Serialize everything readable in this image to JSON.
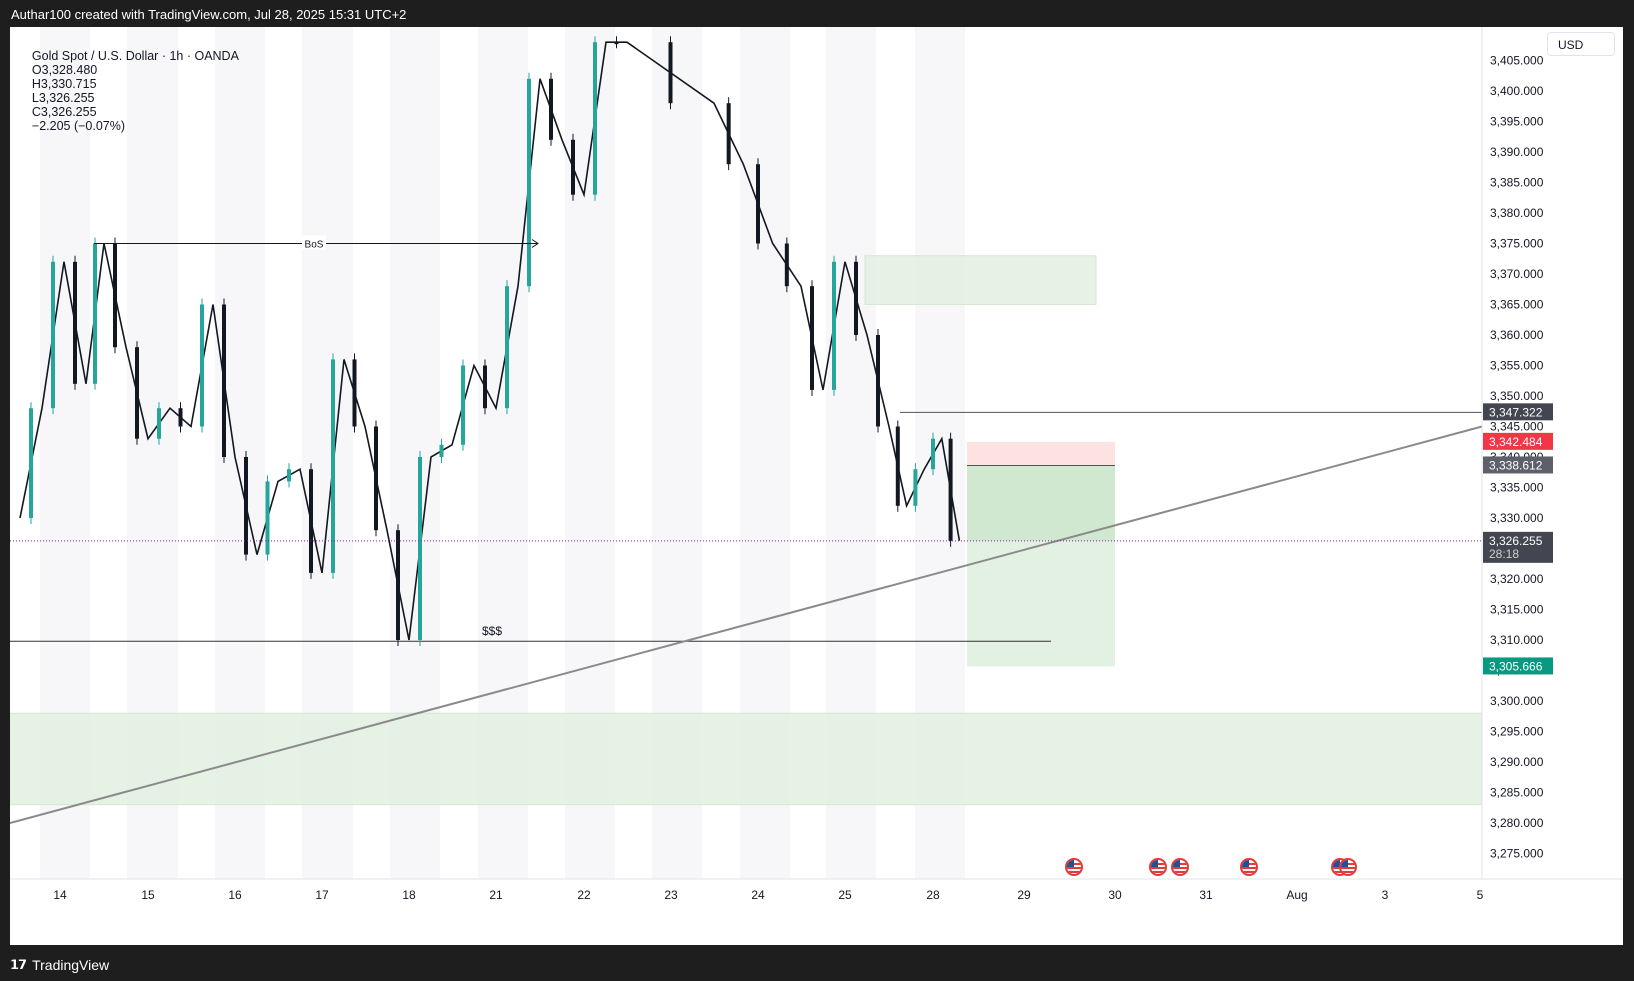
{
  "caption": "Authar100 created with TradingView.com, Jul 28, 2025 15:31 UTC+2",
  "header": {
    "symbol": "Gold Spot / U.S. Dollar · 1h · OANDA",
    "open": "O3,328.480",
    "high": "H3,330.715",
    "low": "L3,326.255",
    "close": "C3,326.255",
    "change": "−2.205 (−0.07%)"
  },
  "currency": "USD",
  "footer": {
    "brand": "TradingView",
    "logo_icon": "tradingview-logo-icon"
  },
  "colors": {
    "up": "#26a69a",
    "down": "#131722",
    "price_line": "#7b1fa2",
    "stop_label": "#f23645",
    "target_label": "#089981",
    "current_label": "#434651"
  },
  "chart_data": {
    "type": "candlestick",
    "symbol": "XAUUSD",
    "timeframe": "1h",
    "x_ticks": [
      "14",
      "15",
      "16",
      "17",
      "18",
      "21",
      "22",
      "23",
      "24",
      "25",
      "28",
      "29",
      "30",
      "31",
      "Aug",
      "3",
      "5"
    ],
    "ylim": [
      3270,
      3408
    ],
    "y_ticks": [
      "3,405.000",
      "3,400.000",
      "3,395.000",
      "3,390.000",
      "3,385.000",
      "3,380.000",
      "3,375.000",
      "3,370.000",
      "3,365.000",
      "3,360.000",
      "3,355.000",
      "3,350.000",
      "3,345.000",
      "3,340.000",
      "3,335.000",
      "3,330.000",
      "3,325.000",
      "3,320.000",
      "3,315.000",
      "3,310.000",
      "3,305.000",
      "3,300.000",
      "3,295.000",
      "3,290.000",
      "3,285.000",
      "3,280.000",
      "3,275.000"
    ],
    "price_path": [
      [
        "14",
        3330
      ],
      [
        "14",
        3348
      ],
      [
        "14",
        3372
      ],
      [
        "14",
        3352
      ],
      [
        "15",
        3375
      ],
      [
        "15",
        3358
      ],
      [
        "15",
        3343
      ],
      [
        "15",
        3348
      ],
      [
        "16",
        3345
      ],
      [
        "16",
        3365
      ],
      [
        "16",
        3340
      ],
      [
        "16",
        3324
      ],
      [
        "17",
        3336
      ],
      [
        "17",
        3338
      ],
      [
        "17",
        3321
      ],
      [
        "17",
        3356
      ],
      [
        "18",
        3345
      ],
      [
        "18",
        3328
      ],
      [
        "18",
        3310
      ],
      [
        "18",
        3340
      ],
      [
        "21",
        3342
      ],
      [
        "21",
        3355
      ],
      [
        "21",
        3348
      ],
      [
        "21",
        3368
      ],
      [
        "22",
        3402
      ],
      [
        "22",
        3392
      ],
      [
        "22",
        3383
      ],
      [
        "22",
        3408
      ],
      [
        "23",
        3408
      ],
      [
        "24",
        3398
      ],
      [
        "24",
        3388
      ],
      [
        "24",
        3375
      ],
      [
        "25",
        3368
      ],
      [
        "25",
        3351
      ],
      [
        "25",
        3372
      ],
      [
        "25",
        3360
      ],
      [
        "28",
        3345
      ],
      [
        "28",
        3332
      ],
      [
        "28",
        3338
      ],
      [
        "28",
        3343
      ],
      [
        "28",
        3326.255
      ]
    ],
    "last_price": "3,326.255",
    "countdown": "28:18",
    "levels": [
      {
        "price": 3347.322,
        "label": "3,347.322",
        "role": "resistance"
      },
      {
        "price": 3342.484,
        "label": "3,342.484",
        "role": "stop"
      },
      {
        "price": 3338.612,
        "label": "3,338.612",
        "role": "entry"
      },
      {
        "price": 3305.666,
        "label": "3,305.666",
        "role": "target"
      }
    ],
    "zones": [
      {
        "from": 3365,
        "to": 3373,
        "role": "supply zone"
      },
      {
        "from": 3283,
        "to": 3298,
        "role": "demand zone"
      }
    ],
    "annotations": [
      "BoS",
      "$$$"
    ],
    "trendline": {
      "start": [
        "14",
        3280
      ],
      "end": [
        "5",
        3345
      ]
    },
    "event_markers": 6
  }
}
